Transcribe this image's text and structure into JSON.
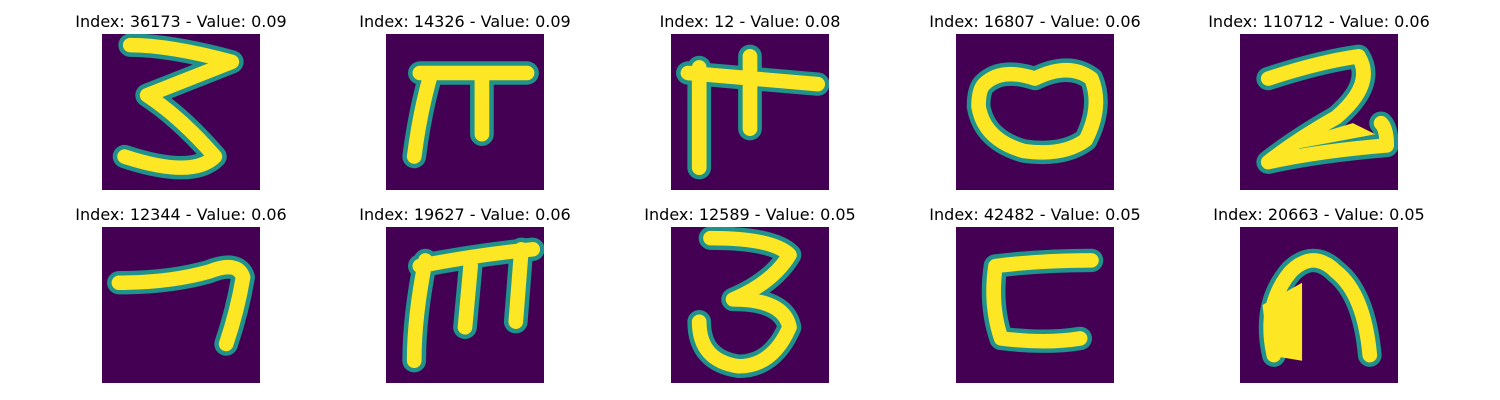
{
  "grid": {
    "items": [
      {
        "title": "Index: 36173 - Value: 0.09",
        "glyph": "handwritten-3-like-glyph"
      },
      {
        "title": "Index: 14326 - Value: 0.09",
        "glyph": "handwritten-pi-like-glyph"
      },
      {
        "title": "Index: 12 - Value: 0.08",
        "glyph": "handwritten-cross-glyph"
      },
      {
        "title": "Index: 16807 - Value: 0.06",
        "glyph": "handwritten-o-glyph"
      },
      {
        "title": "Index: 110712 - Value: 0.06",
        "glyph": "handwritten-2-like-glyph"
      },
      {
        "title": "Index: 12344 - Value: 0.06",
        "glyph": "handwritten-7-like-glyph"
      },
      {
        "title": "Index: 19627 - Value: 0.06",
        "glyph": "handwritten-m-like-glyph"
      },
      {
        "title": "Index: 12589 - Value: 0.05",
        "glyph": "handwritten-3-glyph"
      },
      {
        "title": "Index: 42482 - Value: 0.05",
        "glyph": "handwritten-c-like-glyph"
      },
      {
        "title": "Index: 20663 - Value: 0.05",
        "glyph": "handwritten-n-like-glyph"
      }
    ]
  },
  "colors": {
    "background": "#440154",
    "stroke_core": "#fde725",
    "stroke_edge": "#21918c"
  }
}
